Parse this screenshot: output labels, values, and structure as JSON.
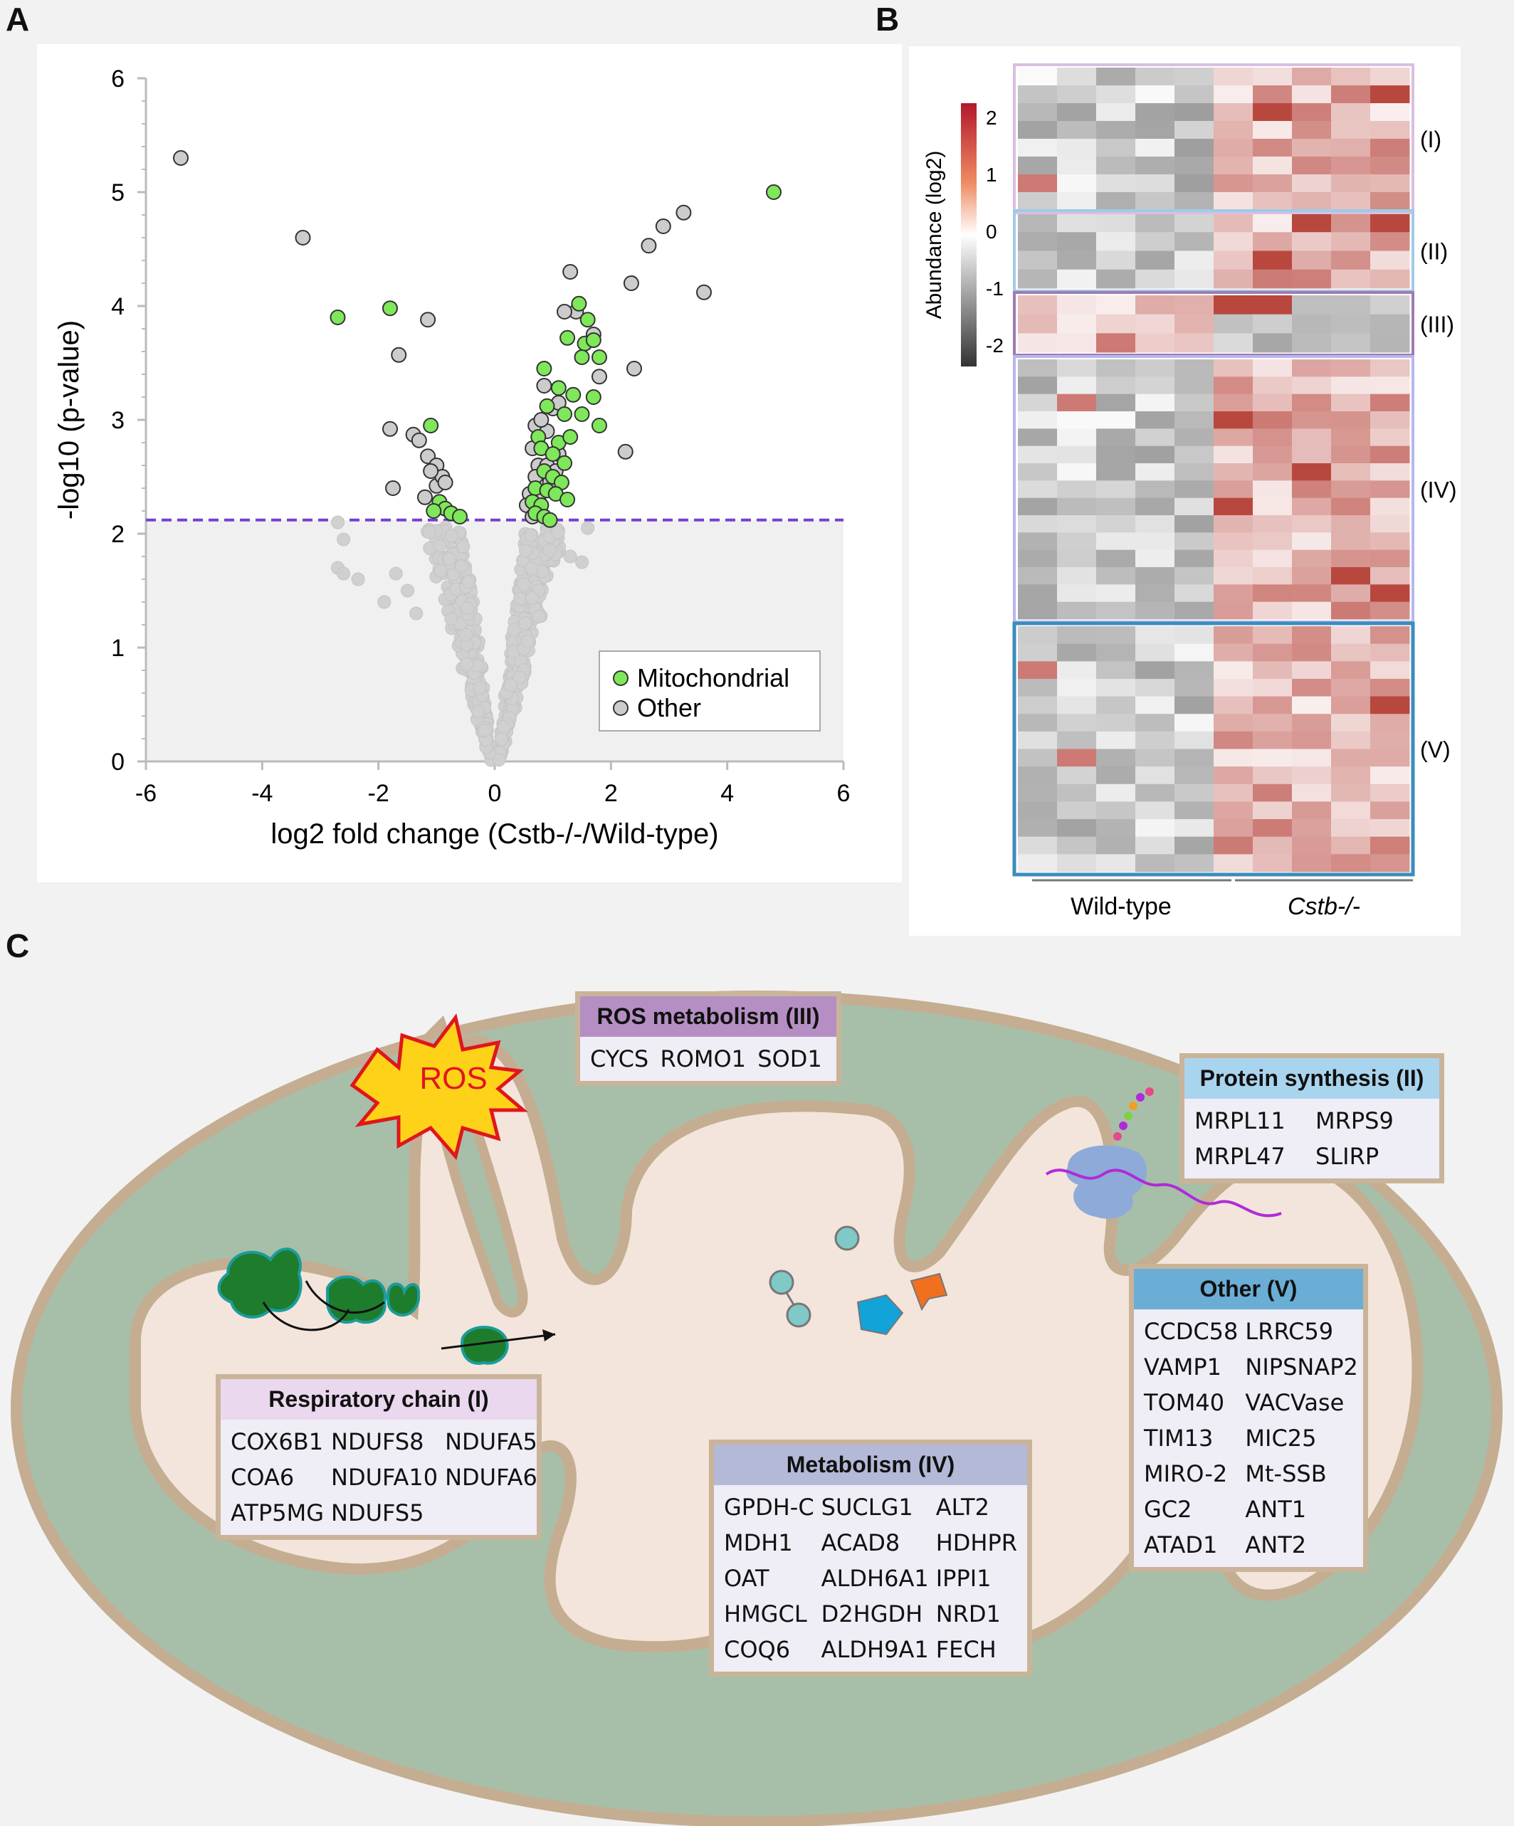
{
  "panels": {
    "a": "A",
    "b": "B",
    "c": "C"
  },
  "chart_data": {
    "type": "scatter",
    "title": "",
    "xlabel": "log2 fold change (Cstb-/-/Wild-type)",
    "ylabel": "-log10 (p-value)",
    "xlim": [
      -6,
      6
    ],
    "ylim": [
      0,
      6
    ],
    "xticks": [
      "-6",
      "-4",
      "-2",
      "0",
      "2",
      "4",
      "6"
    ],
    "yticks": [
      "0",
      "1",
      "2",
      "3",
      "4",
      "5",
      "6"
    ],
    "threshold": 2.12,
    "threshold_color": "#7a3fd1",
    "legend": {
      "position": "bottom-right",
      "entries": [
        "Mitochondrial",
        "Other"
      ]
    },
    "colors": {
      "Mitochondrial": "#7ee85a",
      "Other": "#cccccc",
      "nonsig": "#d0d0d0"
    },
    "series": [
      {
        "name": "Mitochondrial",
        "points": [
          [
            -2.7,
            3.9
          ],
          [
            -1.8,
            3.98
          ],
          [
            -1.1,
            2.95
          ],
          [
            -0.95,
            2.28
          ],
          [
            -0.85,
            2.22
          ],
          [
            -0.75,
            2.18
          ],
          [
            -0.6,
            2.15
          ],
          [
            -1.05,
            2.2
          ],
          [
            4.8,
            5.0
          ],
          [
            1.45,
            4.02
          ],
          [
            1.6,
            3.88
          ],
          [
            1.25,
            3.72
          ],
          [
            1.55,
            3.67
          ],
          [
            1.7,
            3.7
          ],
          [
            1.8,
            3.55
          ],
          [
            0.85,
            3.45
          ],
          [
            1.5,
            3.55
          ],
          [
            1.1,
            3.28
          ],
          [
            1.35,
            3.22
          ],
          [
            1.7,
            3.2
          ],
          [
            1.8,
            2.95
          ],
          [
            0.9,
            3.12
          ],
          [
            1.2,
            3.05
          ],
          [
            1.5,
            3.05
          ],
          [
            0.75,
            2.85
          ],
          [
            1.1,
            2.8
          ],
          [
            1.3,
            2.85
          ],
          [
            0.8,
            2.75
          ],
          [
            1.0,
            2.7
          ],
          [
            1.2,
            2.62
          ],
          [
            0.85,
            2.55
          ],
          [
            1.0,
            2.5
          ],
          [
            1.15,
            2.45
          ],
          [
            0.7,
            2.4
          ],
          [
            0.9,
            2.38
          ],
          [
            1.05,
            2.35
          ],
          [
            1.25,
            2.3
          ],
          [
            0.65,
            2.28
          ],
          [
            0.8,
            2.25
          ],
          [
            0.7,
            2.18
          ],
          [
            0.85,
            2.15
          ],
          [
            0.95,
            2.12
          ]
        ]
      },
      {
        "name": "Other",
        "points": [
          [
            -5.4,
            5.3
          ],
          [
            -3.3,
            4.6
          ],
          [
            -1.15,
            3.88
          ],
          [
            -1.65,
            3.57
          ],
          [
            -1.8,
            2.92
          ],
          [
            -1.4,
            2.87
          ],
          [
            -1.3,
            2.82
          ],
          [
            -1.15,
            2.68
          ],
          [
            -1.0,
            2.6
          ],
          [
            -1.75,
            2.4
          ],
          [
            -1.0,
            2.42
          ],
          [
            -0.9,
            2.5
          ],
          [
            -1.2,
            2.32
          ],
          [
            -1.1,
            2.55
          ],
          [
            -0.85,
            2.45
          ],
          [
            1.3,
            4.3
          ],
          [
            1.4,
            3.95
          ],
          [
            2.9,
            4.7
          ],
          [
            3.25,
            4.82
          ],
          [
            2.65,
            4.53
          ],
          [
            2.35,
            4.2
          ],
          [
            3.6,
            4.12
          ],
          [
            1.2,
            3.95
          ],
          [
            1.7,
            3.75
          ],
          [
            2.4,
            3.45
          ],
          [
            1.8,
            3.38
          ],
          [
            2.25,
            2.72
          ],
          [
            0.85,
            3.3
          ],
          [
            1.0,
            3.1
          ],
          [
            0.7,
            2.95
          ],
          [
            0.9,
            2.9
          ],
          [
            1.1,
            2.7
          ],
          [
            0.75,
            2.6
          ],
          [
            0.9,
            2.6
          ],
          [
            1.05,
            2.55
          ],
          [
            0.65,
            2.75
          ],
          [
            0.8,
            3.0
          ],
          [
            1.1,
            3.15
          ],
          [
            0.7,
            2.5
          ],
          [
            0.95,
            2.45
          ],
          [
            0.6,
            2.35
          ],
          [
            0.75,
            2.3
          ],
          [
            0.55,
            2.25
          ],
          [
            0.65,
            2.15
          ]
        ]
      }
    ]
  },
  "heatmap": {
    "colorbar_label": "Abundance (log2)",
    "colorbar_ticks": [
      "2",
      "1",
      "0",
      "-1",
      "-2"
    ],
    "groups": [
      "(I)",
      "(II)",
      "(III)",
      "(IV)",
      "(V)"
    ],
    "group_colors": [
      "#d9bfe0",
      "#9fcbe6",
      "#a07bb3",
      "#b7b7ee",
      "#3a8dbd"
    ],
    "xlabels": [
      "Wild-type",
      "Cstb-/-"
    ]
  },
  "diagram": {
    "ros": "ROS",
    "tables": {
      "ros": {
        "title": "ROS metabolism (III)",
        "cols": 3,
        "items": [
          "CYCS",
          "ROMO1",
          "SOD1"
        ],
        "color": "#b58fc4"
      },
      "protein": {
        "title": "Protein synthesis (II)",
        "cols": 2,
        "items": [
          "MRPL11",
          "MRPS9",
          "MRPL47",
          "SLIRP"
        ],
        "color": "#a9d4ee"
      },
      "other": {
        "title": "Other (V)",
        "cols": 2,
        "items": [
          "CCDC58",
          "LRRC59",
          "VAMP1",
          "NIPSNAP2",
          "TOM40",
          "VACVase",
          "TIM13",
          "MIC25",
          "MIRO-2",
          "Mt-SSB",
          "GC2",
          "ANT1",
          "ATAD1",
          "ANT2"
        ],
        "color": "#6aaed6"
      },
      "resp": {
        "title": "Respiratory chain (I)",
        "cols": 3,
        "items": [
          "COX6B1",
          "NDUFS8",
          "NDUFA5",
          "COA6",
          "NDUFA10",
          "NDUFA6",
          "ATP5MG",
          "NDUFS5",
          ""
        ],
        "color": "#ead8ee"
      },
      "metab": {
        "title": "Metabolism (IV)",
        "cols": 3,
        "items": [
          "GPDH-C",
          "SUCLG1",
          "ALT2",
          "MDH1",
          "ACAD8",
          "HDHPR",
          "OAT",
          "ALDH6A1",
          "IPPI1",
          "HMGCL",
          "D2HGDH",
          "NRD1",
          "COQ6",
          "ALDH9A1",
          "FECH"
        ],
        "color": "#b4b9d8"
      }
    }
  }
}
